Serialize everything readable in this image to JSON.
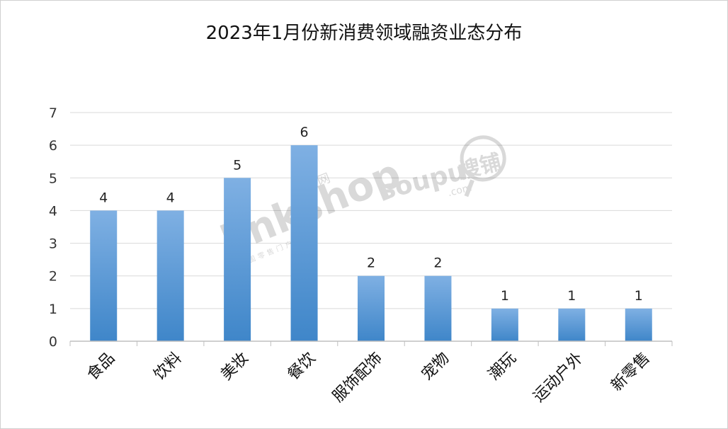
{
  "chart_data": {
    "type": "bar",
    "title": "2023年1月份新消费领域融资业态分布",
    "categories": [
      "食品",
      "饮料",
      "美妆",
      "餐饮",
      "服饰配饰",
      "宠物",
      "潮玩",
      "运动户外",
      "新零售"
    ],
    "values": [
      4,
      4,
      5,
      6,
      2,
      2,
      1,
      1,
      1
    ],
    "ylim": [
      0,
      7
    ],
    "yticks": [
      "0",
      "1",
      "2",
      "3",
      "4",
      "5",
      "6",
      "7"
    ],
    "grid": true,
    "legend": "none",
    "bar_color_top": "#7fb0e3",
    "bar_color_bottom": "#3f86c9"
  },
  "watermarks": {
    "left_logo": "linkshop",
    "left_cn": "联商网",
    "left_sub": "中国零售门户网站",
    "right_logo": "soupu",
    "right_domain": ".com",
    "right_cn": "搜铺"
  }
}
